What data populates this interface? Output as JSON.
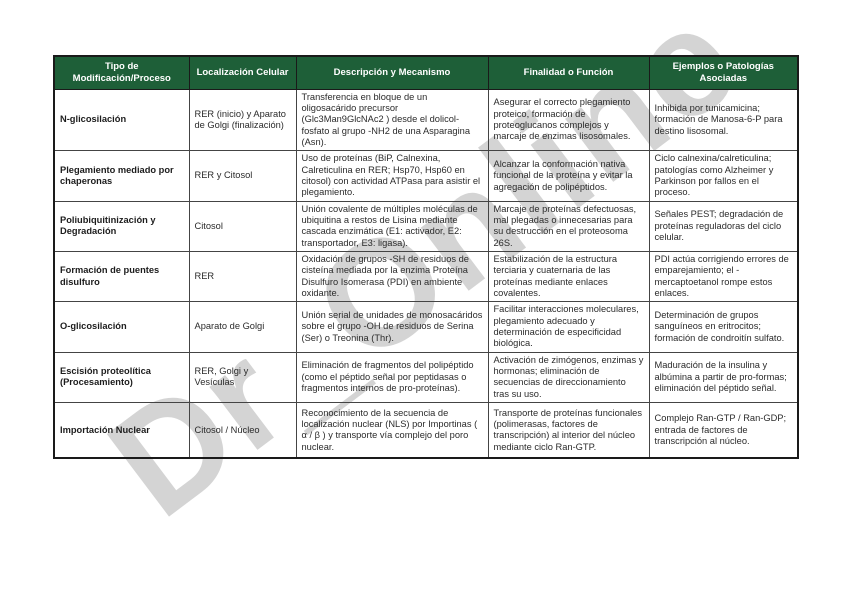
{
  "watermark": {
    "text": "Dr_Online"
  },
  "table": {
    "columns": [
      "Tipo de Modificación/Proceso",
      "Localización Celular",
      "Descripción y Mecanismo",
      "Finalidad o Función",
      "Ejemplos o Patologías Asociadas"
    ],
    "rows": [
      {
        "tipo": "N-glicosilación",
        "localizacion": "RER (inicio) y Aparato de Golgi (finalización)",
        "descripcion": "Transferencia en bloque de un oligosacárido precursor (Glc3Man9GlcNAc2 ) desde el dolicol-fosfato al grupo  -NH2  de una Asparagina (Asn).",
        "finalidad": "Asegurar el correcto plegamiento proteico, formación de proteoglucanos complejos y marcaje de enzimas lisosomales.",
        "ejemplos": "Inhibida por tunicamicina; formación de Manosa-6-P para destino lisosomal."
      },
      {
        "tipo": "Plegamiento mediado por chaperonas",
        "localizacion": "RER y Citosol",
        "descripcion": "Uso de proteínas (BiP, Calnexina, Calreticulina en RER; Hsp70, Hsp60 en citosol) con actividad ATPasa para asistir el plegamiento.",
        "finalidad": "Alcanzar la conformación nativa funcional de la proteína y evitar la agregación de polipéptidos.",
        "ejemplos": "Ciclo calnexina/calreticulina; patologías como Alzheimer y Parkinson por fallos en el proceso."
      },
      {
        "tipo": "Poliubiquitinización y Degradación",
        "localizacion": "Citosol",
        "descripcion": "Unión covalente de múltiples moléculas de ubiquitina a restos de Lisina mediante cascada enzimática (E1: activador, E2: transportador, E3: ligasa).",
        "finalidad": "Marcaje de proteínas defectuosas, mal plegadas o innecesarias para su destrucción en el proteosoma 26S.",
        "ejemplos": "Señales PEST; degradación de proteínas reguladoras del ciclo celular."
      },
      {
        "tipo": "Formación de puentes disulfuro",
        "localizacion": "RER",
        "descripcion": "Oxidación de grupos  -SH  de residuos de cisteína mediada por la enzima Proteína Disulfuro Isomerasa (PDI) en ambiente oxidante.",
        "finalidad": "Estabilización de la estructura terciaria y cuaternaria de las proteínas mediante enlaces covalentes.",
        "ejemplos": "PDI actúa corrigiendo errores de emparejamiento; el  -mercaptoetanol rompe estos enlaces."
      },
      {
        "tipo": "O-glicosilación",
        "localizacion": "Aparato de Golgi",
        "descripcion": "Unión serial de unidades de monosacáridos sobre el grupo  -OH  de residuos de Serina (Ser) o Treonina (Thr).",
        "finalidad": "Facilitar interacciones moleculares, plegamiento adecuado y determinación de especificidad biológica.",
        "ejemplos": "Determinación de grupos sanguíneos en eritrocitos; formación de condroitín sulfato."
      },
      {
        "tipo": "Escisión proteolítica (Procesamiento)",
        "localizacion": "RER, Golgi y Vesículas",
        "descripcion": "Eliminación de fragmentos del polipéptido (como el péptido señal por peptidasas o fragmentos internos de pro-proteínas).",
        "finalidad": "Activación de zimógenos, enzimas y hormonas; eliminación de secuencias de direccionamiento tras su uso.",
        "ejemplos": "Maduración de la insulina y albúmina a partir de pro-formas; eliminación del péptido señal."
      },
      {
        "tipo": "Importación Nuclear",
        "localizacion": "Citosol / Núcleo",
        "descripcion": "Reconocimiento de la secuencia de localización nuclear (NLS) por Importinas ( α / β ) y transporte vía complejo del poro nuclear.",
        "finalidad": "Transporte de proteínas funcionales (polimerasas, factores de transcripción) al interior del núcleo mediante ciclo Ran-GTP.",
        "ejemplos": "Complejo Ran-GTP / Ran-GDP; entrada de factores de transcripción al núcleo."
      }
    ]
  }
}
